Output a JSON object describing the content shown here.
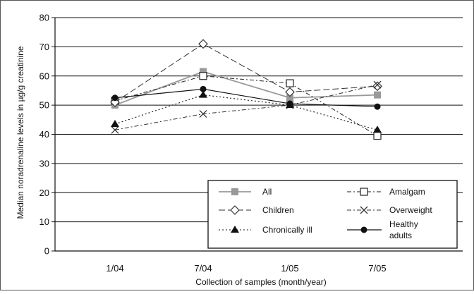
{
  "chart_data": {
    "type": "line",
    "title": "",
    "xlabel": "Collection of samples (month/year)",
    "ylabel": "Median noradrenaline levels in µg/g creatinine",
    "categories": [
      "1/04",
      "7/04",
      "1/05",
      "7/05"
    ],
    "ylim": [
      0,
      80
    ],
    "yticks": [
      "0",
      "10",
      "20",
      "30",
      "40",
      "50",
      "60",
      "70",
      "80"
    ],
    "grid": "horizontal",
    "legend_position": "bottom-right",
    "series": [
      {
        "name": "All",
        "values": [
          50,
          61.5,
          52.5,
          53.5
        ],
        "line": "solid-gray",
        "marker": "filled-square",
        "color": "#999999"
      },
      {
        "name": "Amalgam",
        "values": [
          51.5,
          60,
          57.5,
          39.5
        ],
        "line": "dash-dot",
        "marker": "open-square",
        "color": "#222222"
      },
      {
        "name": "Children",
        "values": [
          51,
          71,
          54.5,
          56.5
        ],
        "line": "long-dash",
        "marker": "open-diamond",
        "color": "#333333"
      },
      {
        "name": "Overweight",
        "values": [
          41.5,
          47,
          50,
          57
        ],
        "line": "dash-dot",
        "marker": "cross",
        "color": "#333333"
      },
      {
        "name": "Chronically ill",
        "values": [
          43.5,
          53.5,
          50,
          41.5
        ],
        "line": "dotted",
        "marker": "filled-triangle",
        "color": "#111111"
      },
      {
        "name": "Healthy adults",
        "values": [
          52.5,
          55.5,
          50.5,
          49.5
        ],
        "line": "solid",
        "marker": "filled-circle",
        "color": "#111111"
      }
    ],
    "legend": {
      "all": "All",
      "amalgam": "Amalgam",
      "children": "Children",
      "overweight": "Overweight",
      "chronically_ill": "Chronically ill",
      "healthy_adults_line1": "Healthy",
      "healthy_adults_line2": "adults"
    }
  }
}
